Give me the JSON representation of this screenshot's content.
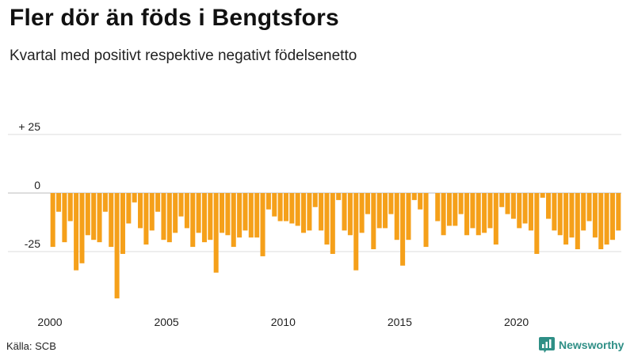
{
  "title": "Fler dör än föds i Bengtsfors",
  "subtitle": "Kvartal med positivt respektive negativt födelsenetto",
  "source": "Källa: SCB",
  "brand": {
    "name": "Newsworthy",
    "logo_icon": "newsworthy-logo-icon",
    "color": "#2f8f86"
  },
  "chart_data": {
    "type": "bar",
    "bar_color": "#f5a01a",
    "grid": true,
    "ylim": [
      -46,
      25
    ],
    "yticks": [
      {
        "value": 25,
        "label": "+ 25"
      },
      {
        "value": 0,
        "label": "0"
      },
      {
        "value": -25,
        "label": "-25"
      }
    ],
    "xticks": [
      {
        "year": 2000,
        "label": "2000"
      },
      {
        "year": 2005,
        "label": "2005"
      },
      {
        "year": 2010,
        "label": "2010"
      },
      {
        "year": 2015,
        "label": "2015"
      },
      {
        "year": 2020,
        "label": "2020"
      }
    ],
    "start_year": 2000,
    "periods_per_year": 4,
    "values": [
      -23,
      -8,
      -21,
      -12,
      -33,
      -30,
      -18,
      -20,
      -21,
      -8,
      -23,
      -45,
      -26,
      -13,
      -4,
      -15,
      -22,
      -16,
      -8,
      -20,
      -21,
      -17,
      -10,
      -15,
      -23,
      -17,
      -21,
      -20,
      -34,
      -17,
      -18,
      -23,
      -19,
      -16,
      -19,
      -19,
      -27,
      -7,
      -10,
      -12,
      -12,
      -13,
      -14,
      -17,
      -16,
      -6,
      -16,
      -22,
      -26,
      -3,
      -16,
      -18,
      -33,
      -17,
      -9,
      -24,
      -15,
      -15,
      -9,
      -20,
      -31,
      -20,
      -3,
      -7,
      -23,
      0,
      -12,
      -18,
      -14,
      -14,
      -9,
      -18,
      -15,
      -18,
      -17,
      -15,
      -22,
      -6,
      -9,
      -11,
      -15,
      -13,
      -16,
      -26,
      -2,
      -11,
      -16,
      -18,
      -22,
      -19,
      -24,
      -16,
      -12,
      -19,
      -24,
      -22,
      -20,
      -16
    ]
  }
}
